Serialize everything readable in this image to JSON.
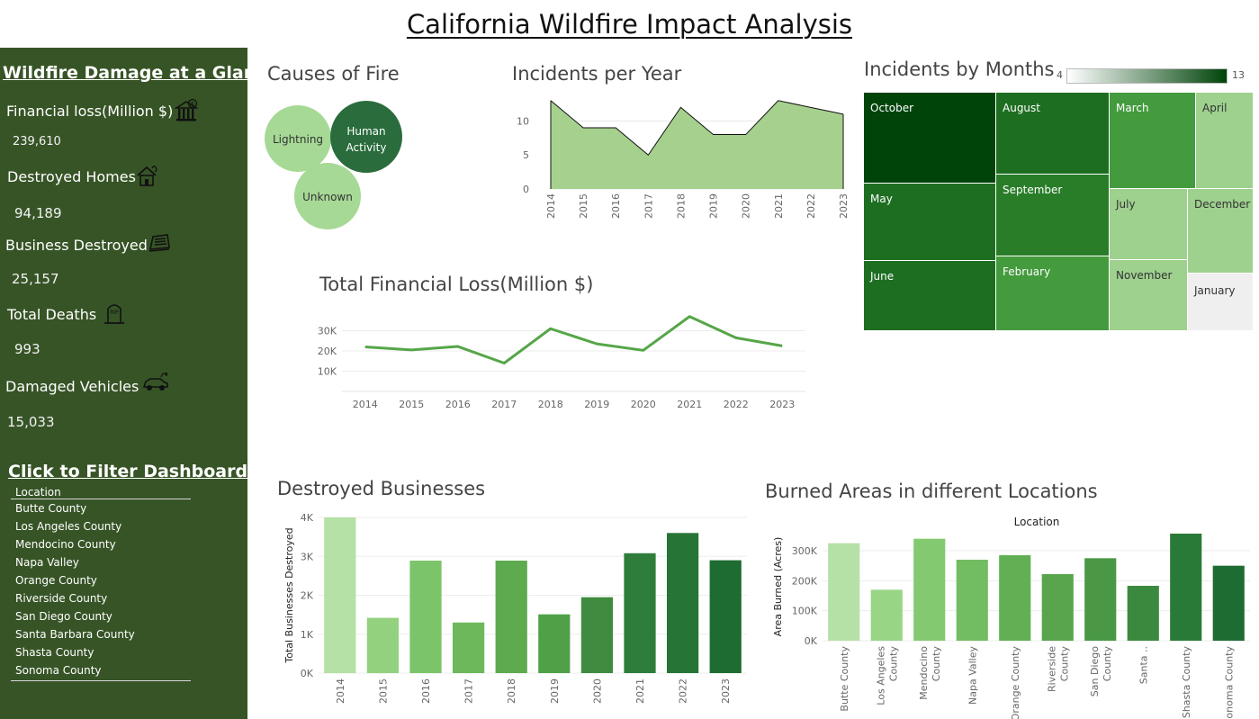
{
  "dashboard": {
    "title": "California Wildfire Impact Analysis"
  },
  "sidebar": {
    "heading": "Wildfire Damage at a Glance",
    "kpis": [
      {
        "label": "Financial loss(Million $)",
        "value": "239,610",
        "icon": "bank-damage-icon"
      },
      {
        "label": "Destroyed Homes",
        "value": "94,189",
        "icon": "burning-house-icon"
      },
      {
        "label": "Business Destroyed",
        "value": "25,157",
        "icon": "destroyed-building-icon"
      },
      {
        "label": "Total Deaths",
        "value": "993",
        "icon": "tombstone-icon"
      },
      {
        "label": "Damaged Vehicles",
        "value": "15,033",
        "icon": "burning-car-icon"
      }
    ],
    "filter": {
      "heading": "Click to Filter Dashboard",
      "title": "Location",
      "items": [
        "Butte County",
        "Los Angeles County",
        "Mendocino County",
        "Napa Valley",
        "Orange County",
        "Riverside County",
        "San Diego County",
        "Santa Barbara County",
        "Shasta County",
        "Sonoma County"
      ]
    }
  },
  "colors": {
    "sidebar": "#375426",
    "dark_green": "#00440a",
    "light_green": "#a6d995"
  },
  "chart_data": [
    {
      "id": "causes",
      "type": "bubble",
      "title": "Causes of Fire",
      "categories": [
        "Lightning",
        "Human Activity",
        "Unknown"
      ],
      "colors": [
        "#a6d995",
        "#2a6c3c",
        "#a6d995"
      ]
    },
    {
      "id": "incidents_year",
      "type": "area",
      "title": "Incidents per Year",
      "x": [
        "2014",
        "2015",
        "2016",
        "2017",
        "2018",
        "2019",
        "2020",
        "2021",
        "2022",
        "2023"
      ],
      "values": [
        13,
        9,
        9,
        5,
        12,
        8,
        8,
        13,
        12,
        11
      ],
      "yticks": [
        0,
        5,
        10
      ],
      "ylim": [
        0,
        13.5
      ],
      "grid": true
    },
    {
      "id": "incidents_month",
      "type": "treemap",
      "title": "Incidents by Months",
      "legend": {
        "min": "4",
        "max": "13"
      },
      "months": [
        "October",
        "August",
        "March",
        "April",
        "May",
        "September",
        "July",
        "December",
        "June",
        "February",
        "November",
        "January"
      ]
    },
    {
      "id": "financial_loss",
      "type": "line",
      "title": "Total Financial Loss(Million $)",
      "x": [
        "2014",
        "2015",
        "2016",
        "2017",
        "2018",
        "2019",
        "2020",
        "2021",
        "2022",
        "2023"
      ],
      "values": [
        22000,
        20500,
        22200,
        14000,
        31000,
        23500,
        20300,
        37000,
        26500,
        22500
      ],
      "yticks": [
        "10K",
        "20K",
        "30K"
      ],
      "ylim": [
        0,
        40000
      ],
      "grid": true
    },
    {
      "id": "destroyed_businesses",
      "type": "bar",
      "title": "Destroyed Businesses",
      "ylabel": "Total Businesses Destroyed",
      "categories": [
        "2014",
        "2015",
        "2016",
        "2017",
        "2018",
        "2019",
        "2020",
        "2021",
        "2022",
        "2023"
      ],
      "values": [
        4000,
        1420,
        2890,
        1300,
        2890,
        1510,
        1950,
        3080,
        3600,
        2900
      ],
      "yticks": [
        "0K",
        "1K",
        "2K",
        "3K",
        "4K"
      ],
      "ylim": [
        0,
        4000
      ],
      "colors": [
        "#b5e0a6",
        "#94d17e",
        "#7bc46a",
        "#6cb85b",
        "#5daa4f",
        "#50a048",
        "#3f8c40",
        "#2e7d3a",
        "#267536",
        "#1f6c33"
      ],
      "grid": true
    },
    {
      "id": "burned_areas",
      "type": "bar",
      "title": "Burned Areas in different Locations",
      "header": "Location",
      "ylabel": "Area Burned (Acres)",
      "categories": [
        "Butte County",
        "Los Angeles County",
        "Mendocino County",
        "Napa Valley",
        "Orange County",
        "Riverside County",
        "San Diego County",
        "Santa ..",
        "Shasta County",
        "Sonoma County"
      ],
      "values": [
        325000,
        170000,
        340000,
        270000,
        285000,
        222000,
        275000,
        183000,
        357000,
        250000
      ],
      "yticks": [
        "0K",
        "100K",
        "200K",
        "300K"
      ],
      "ylim": [
        0,
        360000
      ],
      "colors": [
        "#b5e0a6",
        "#98d585",
        "#83c970",
        "#72bd61",
        "#62b054",
        "#58a54c",
        "#4a9845",
        "#3a893e",
        "#2a7a37",
        "#1f6c33"
      ],
      "grid": true
    }
  ]
}
